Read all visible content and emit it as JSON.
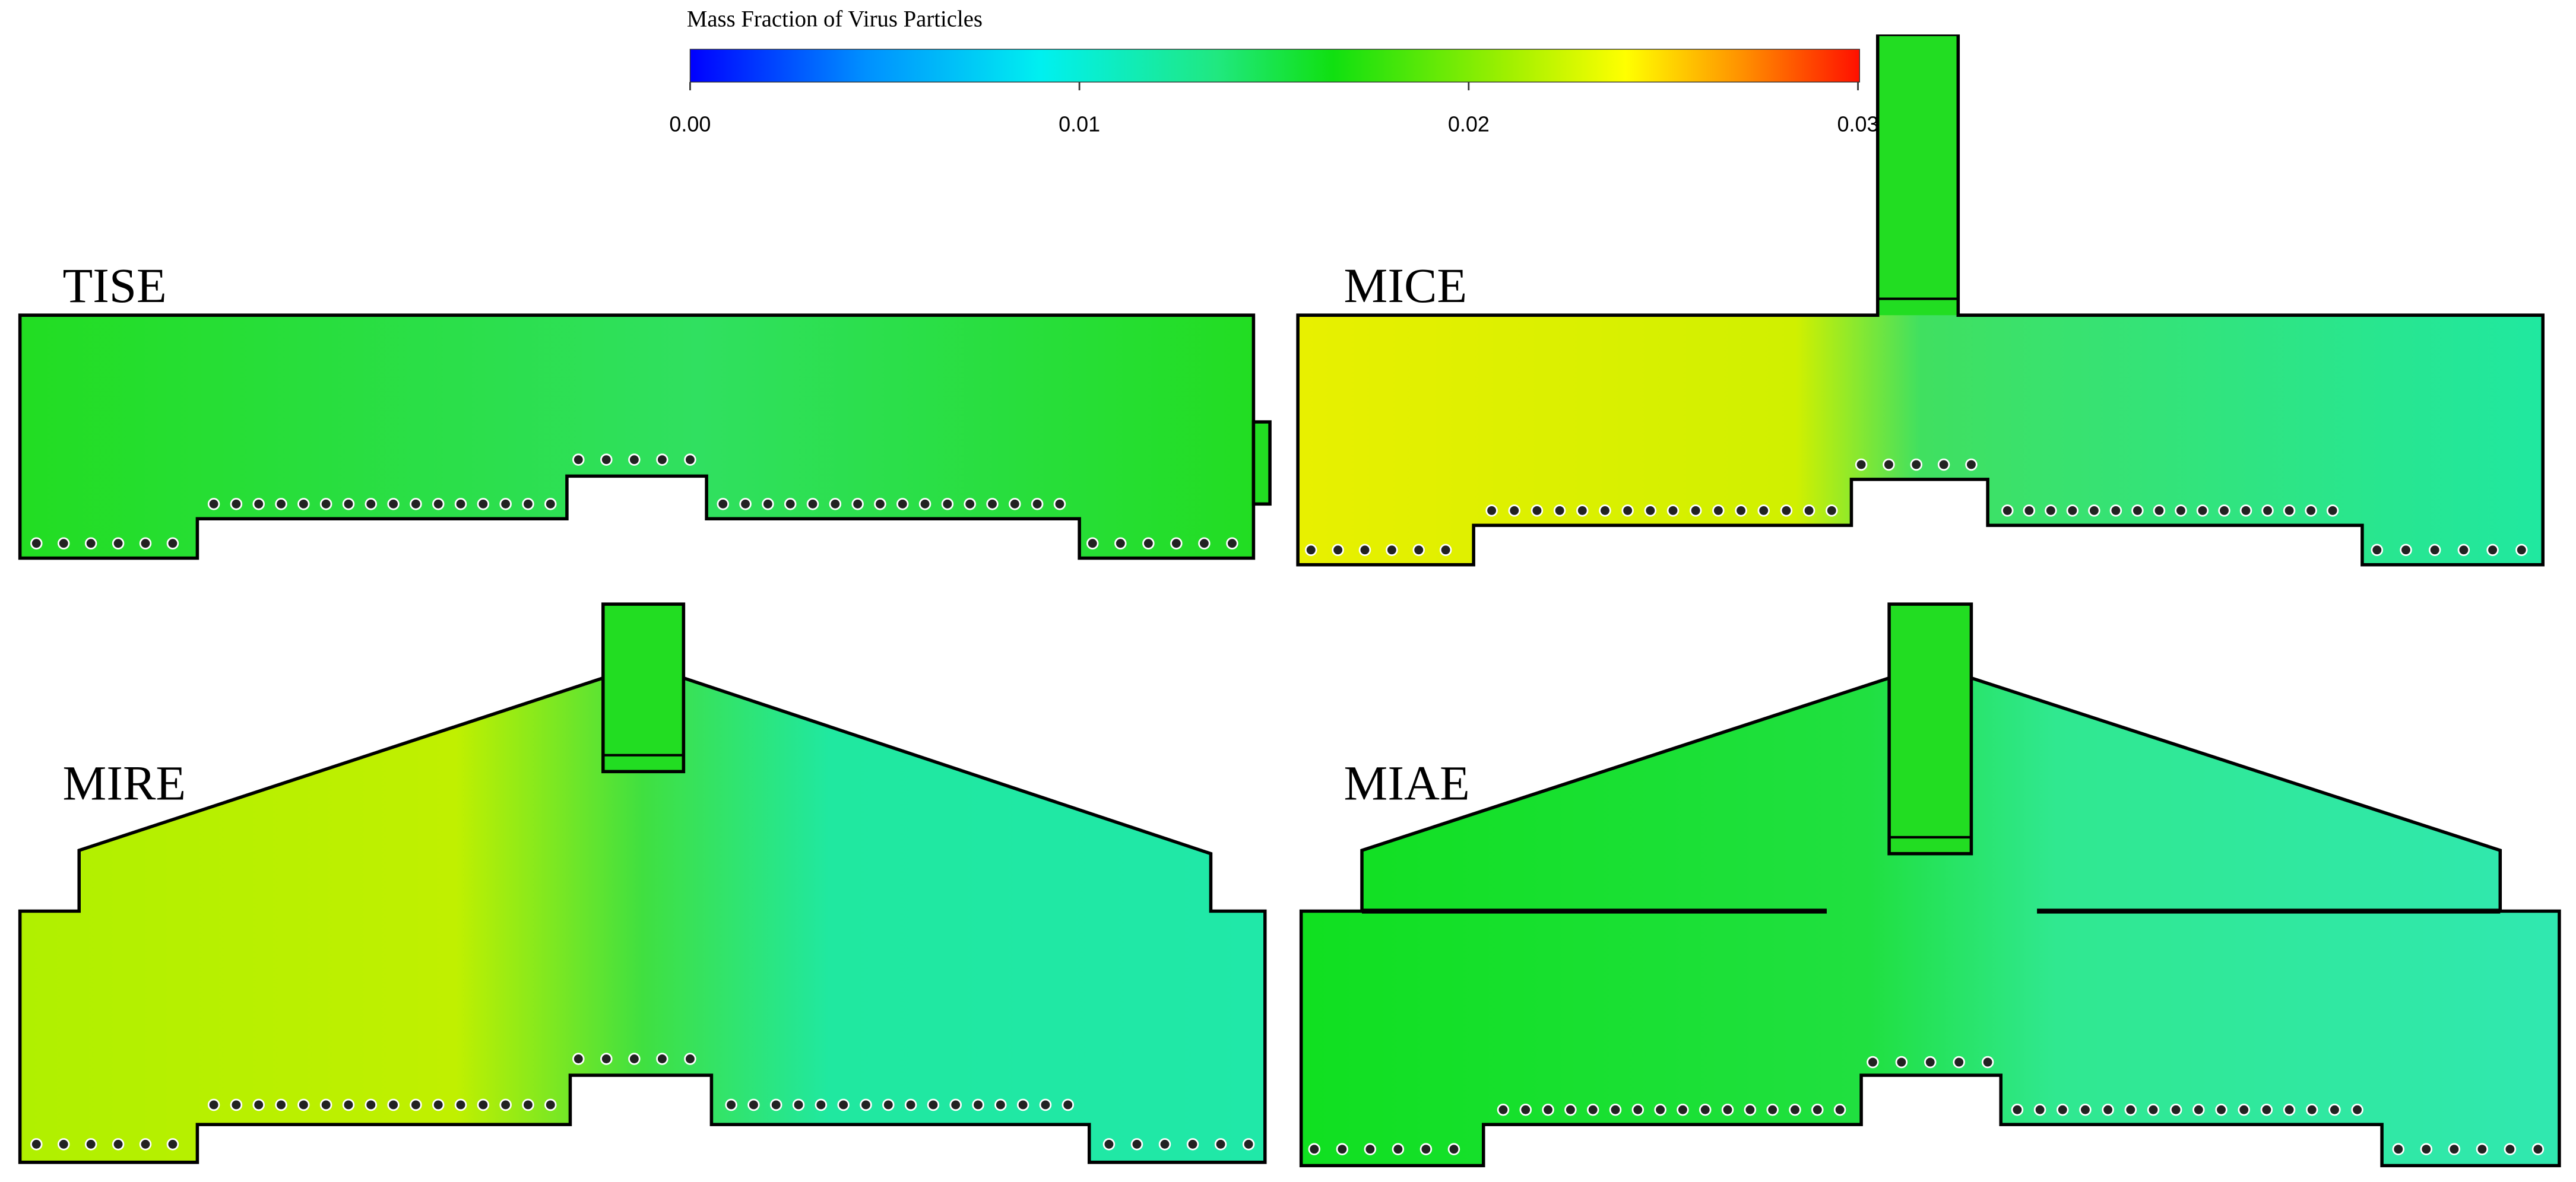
{
  "colorbar": {
    "title": "Mass Fraction of Virus Particles",
    "range": [
      0,
      0.03
    ],
    "ticks": [
      {
        "value": 0,
        "label": "0.00"
      },
      {
        "value": 0.01,
        "label": "0.01"
      },
      {
        "value": 0.02,
        "label": "0.02"
      },
      {
        "value": 0.03,
        "label": "0.03"
      }
    ]
  },
  "panels": [
    {
      "label": "TISE"
    },
    {
      "label": "MICE"
    },
    {
      "label": "MIRE"
    },
    {
      "label": "MIAE"
    }
  ]
}
